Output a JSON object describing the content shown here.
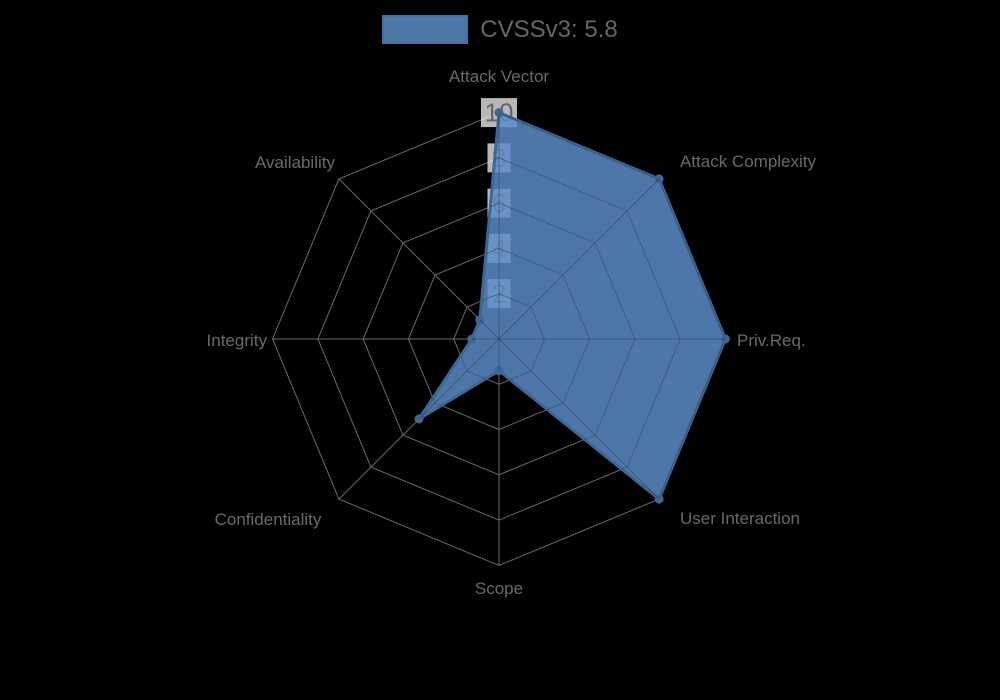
{
  "legend": {
    "label": "CVSSv3: 5.8"
  },
  "chart_data": {
    "type": "radar",
    "title": "",
    "categories": [
      "Attack Vector",
      "Attack Complexity",
      "Priv.Req.",
      "User Interaction",
      "Scope",
      "Confidentiality",
      "Integrity",
      "Availability"
    ],
    "series": [
      {
        "name": "CVSSv3: 5.8",
        "values": [
          10,
          10,
          10,
          10,
          1.4,
          5,
          1.2,
          1.2
        ]
      }
    ],
    "ticks": [
      2,
      4,
      6,
      8,
      10
    ],
    "rmin": 0,
    "rmax": 10,
    "grid": true,
    "legend_position": "top",
    "colors": {
      "background": "#000000",
      "fill": "#5a8cc6",
      "fill_opacity": 0.85,
      "border": "#3f6794",
      "point": "#3f6794",
      "grid": "#7a7a7a",
      "grid_inner_overlay": "rgba(30,42,60,0.45)",
      "tick_backdrop": "rgba(255,255,255,0.72)",
      "tick_text": "#666666",
      "label_text": "#696969",
      "legend_text": "#666666",
      "legend_swatch": "#4d79a9"
    }
  }
}
